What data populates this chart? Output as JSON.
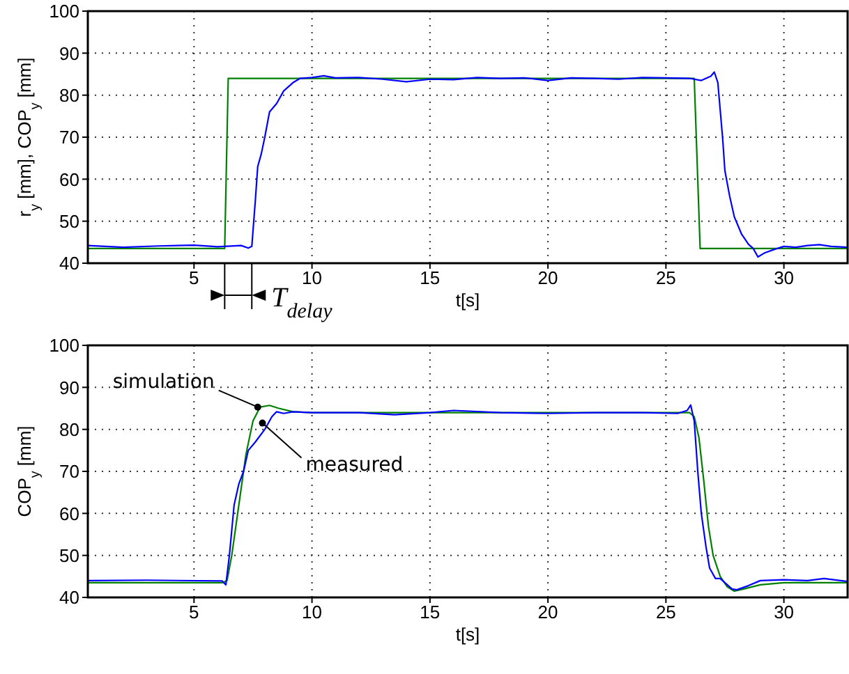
{
  "chart_data": [
    {
      "type": "line",
      "ylabel": "r$_{y}$ [mm], COP$_{y}$ [mm]",
      "xlabel": "t[s]",
      "xlim": [
        0.5,
        32.7
      ],
      "ylim": [
        40,
        100
      ],
      "xticks": [
        5,
        10,
        15,
        20,
        25,
        30
      ],
      "yticks": [
        40,
        50,
        60,
        70,
        80,
        90,
        100
      ],
      "grid": true,
      "marker": "none",
      "line_style": "solid",
      "annotations": [
        "T$_{delay}$"
      ],
      "series": [
        {
          "color": "#008000",
          "x": [
            0.5,
            6.3,
            6.45,
            26.2,
            26.45,
            32.7
          ],
          "values": [
            43.5,
            43.5,
            84,
            84,
            43.5,
            43.5
          ]
        },
        {
          "color": "#0000ff",
          "x": [
            0.5,
            2,
            3.5,
            5,
            6,
            7,
            7.3,
            7.45,
            7.6,
            7.7,
            7.85,
            8,
            8.2,
            8.5,
            8.8,
            9.2,
            9.5,
            10,
            10.5,
            11,
            12,
            13,
            14,
            15,
            16,
            17,
            18,
            19,
            20,
            21,
            22,
            23,
            24,
            25,
            26,
            26.5,
            26.9,
            27.05,
            27.2,
            27.4,
            27.5,
            27.7,
            27.9,
            28.2,
            28.5,
            28.7,
            28.9,
            29.2,
            29.6,
            30,
            30.5,
            31,
            31.5,
            32,
            32.7
          ],
          "values": [
            44.2,
            43.8,
            44.1,
            44.3,
            43.9,
            44.2,
            43.6,
            44,
            55,
            63,
            66,
            70,
            76,
            78,
            81,
            83,
            84,
            84.2,
            84.6,
            84.1,
            84.2,
            83.8,
            83.2,
            83.8,
            83.7,
            84.2,
            84,
            84.1,
            83.5,
            84.1,
            84,
            83.8,
            84.2,
            84.1,
            84,
            83.5,
            84.5,
            85.5,
            83,
            70,
            62,
            56,
            51,
            47,
            44.5,
            43.5,
            41.5,
            42.5,
            43.3,
            44,
            43.8,
            44.2,
            44.4,
            44,
            43.8
          ]
        }
      ]
    },
    {
      "type": "line",
      "ylabel": "COP$_{y}$ [mm]",
      "xlabel": "t[s]",
      "xlim": [
        0.5,
        32.7
      ],
      "ylim": [
        40,
        100
      ],
      "xticks": [
        5,
        10,
        15,
        20,
        25,
        30
      ],
      "yticks": [
        40,
        50,
        60,
        70,
        80,
        90,
        100
      ],
      "grid": true,
      "marker": "none",
      "line_style": "solid",
      "annotations": [
        {
          "text": "simulation",
          "x": 7.7,
          "y": 85.3
        },
        {
          "text": "measured",
          "x": 7.9,
          "y": 81.5
        }
      ],
      "series": [
        {
          "color": "#008000",
          "x": [
            0.5,
            6.2,
            6.4,
            6.6,
            6.9,
            7.2,
            7.5,
            7.8,
            8.2,
            8.6,
            9.2,
            10,
            26,
            26.2,
            26.4,
            26.6,
            26.8,
            27,
            27.3,
            27.6,
            27.9,
            28.3,
            29,
            30,
            32.7
          ],
          "values": [
            43.5,
            43.5,
            44,
            50,
            62,
            74,
            82,
            85.3,
            85.7,
            85,
            84.2,
            84,
            84,
            83,
            78,
            68,
            57,
            50,
            45,
            42.5,
            41.5,
            42,
            43,
            43.5,
            43.5
          ]
        },
        {
          "color": "#0000ff",
          "x": [
            0.5,
            3,
            6.2,
            6.35,
            6.5,
            6.7,
            6.9,
            7.1,
            7.3,
            7.6,
            8,
            8.3,
            8.5,
            8.8,
            9.2,
            10,
            12,
            13.5,
            15,
            16,
            18,
            20,
            22,
            24,
            25.5,
            25.9,
            26.05,
            26.2,
            26.35,
            26.5,
            26.7,
            26.85,
            27.1,
            27.3,
            27.5,
            27.8,
            28,
            28.5,
            29,
            30,
            31,
            31.7,
            32.7
          ],
          "values": [
            44,
            44.1,
            43.9,
            43,
            50,
            62,
            67,
            70,
            75,
            77,
            80,
            83,
            84.2,
            83.8,
            84.2,
            84,
            84,
            83.5,
            84,
            84.5,
            84,
            83.8,
            84,
            84,
            83.8,
            84.5,
            85.8,
            82,
            70,
            60,
            52,
            47,
            44.5,
            44.5,
            43.5,
            42,
            41.8,
            42.8,
            44,
            44.2,
            44,
            44.5,
            43.8
          ]
        }
      ]
    }
  ]
}
